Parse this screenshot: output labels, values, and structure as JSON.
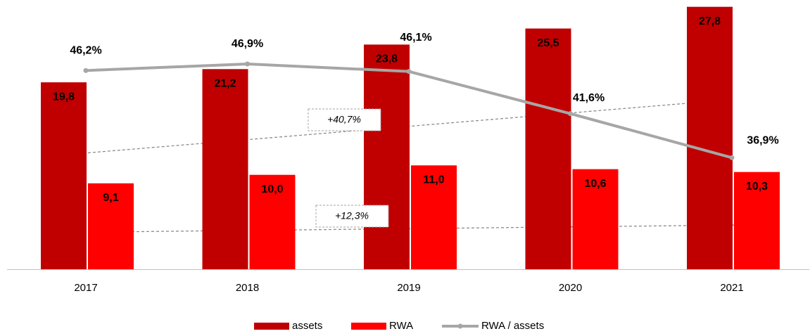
{
  "chart_data": {
    "type": "bar",
    "categories": [
      "2017",
      "2018",
      "2019",
      "2020",
      "2021"
    ],
    "series": [
      {
        "name": "assets",
        "color": "#c00000",
        "values": [
          19.8,
          21.2,
          23.8,
          25.5,
          27.8
        ],
        "value_labels": [
          "19,8",
          "21,2",
          "23,8",
          "25,5",
          "27,8"
        ]
      },
      {
        "name": "RWA",
        "color": "#ff0000",
        "values": [
          9.1,
          10.0,
          11.0,
          10.6,
          10.3
        ],
        "value_labels": [
          "9,1",
          "10,0",
          "11,0",
          "10,6",
          "10,3"
        ]
      },
      {
        "name": "RWA / assets",
        "type": "line",
        "axis": "y2",
        "color": "#a6a6a6",
        "values": [
          46.2,
          46.9,
          46.1,
          41.6,
          36.9
        ],
        "value_labels": [
          "46,2%",
          "46,9%",
          "46,1%",
          "41,6%",
          "36,9%"
        ]
      }
    ],
    "ylim": [
      0,
      28
    ],
    "y2lim": [
      25,
      53.2
    ],
    "annotations": [
      "+40,7%",
      "+12,3%"
    ],
    "legend": "bottom"
  }
}
